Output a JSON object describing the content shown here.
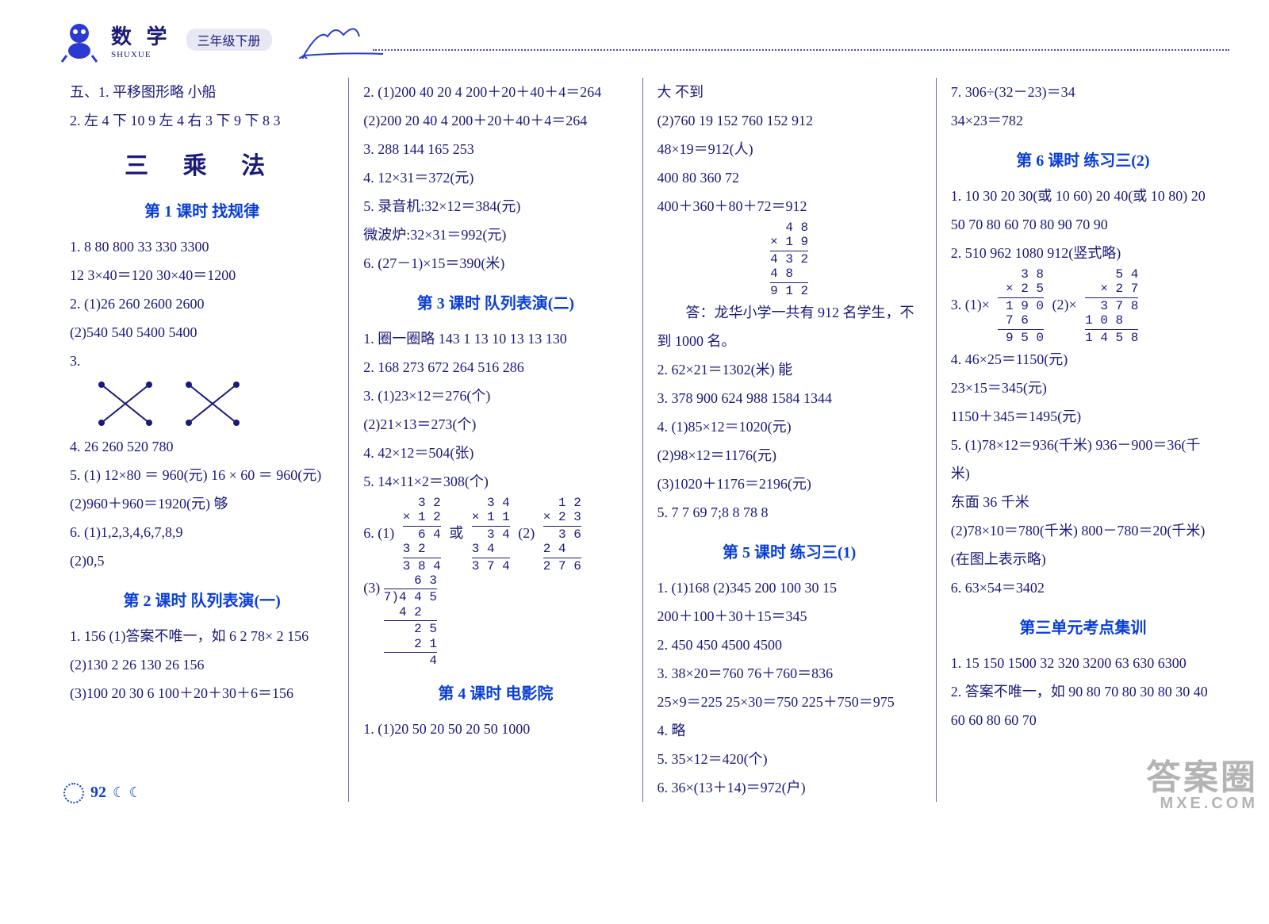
{
  "header": {
    "subject": "数 学",
    "pinyin": "SHUXUE",
    "grade": "三年级下册"
  },
  "unit_title": "三  乘    法",
  "lesson_titles": {
    "l1": "第 1 课时  找规律",
    "l2": "第 2 课时  队列表演(一)",
    "l3": "第 3 课时  队列表演(二)",
    "l4": "第 4 课时  电影院",
    "l5": "第 5 课时  练习三(1)",
    "l6": "第 6 课时  练习三(2)",
    "exam": "第三单元考点集训"
  },
  "col1": {
    "pre1": "五、1. 平移图形略  小船",
    "pre2": "2. 左 4 下 10 9 左 4 右 3 下 9 下 8 3",
    "l1_1": "1. 8  80  800  33  330  3300",
    "l1_1b": "12  3×40＝120  30×40＝1200",
    "l1_2": "2. (1)26  260  2600  2600",
    "l1_2b": "(2)540  540  5400  5400",
    "l1_3": "3.",
    "l1_4": "4. 26  260  520  780",
    "l1_5a": "5. (1) 12×80 ＝ 960(元)   16 × 60 ＝ 960(元)",
    "l1_5b": "(2)960＋960＝1920(元)  够",
    "l1_6a": "6. (1)1,2,3,4,6,7,8,9",
    "l1_6b": "(2)0,5",
    "l2_1a": "1. 156   (1)答案不唯一，如 6  2  78× 2  156",
    "l2_1b": "(2)130  2  26  130  26  156",
    "l2_1c": "(3)100  20  30  6  100＋20＋30＋6＝156"
  },
  "col2": {
    "l2_2a": "2. (1)200  40  20  4  200＋20＋40＋4＝264",
    "l2_2b": "(2)200  20  40  4  200＋20＋40＋4＝264",
    "l2_3": "3. 288  144  165  253",
    "l2_4": "4. 12×31＝372(元)",
    "l2_5a": "5. 录音机:32×12＝384(元)",
    "l2_5b": "微波炉:32×31＝992(元)",
    "l2_6": "6. (27－1)×15＝390(米)",
    "l3_1": "1. 圈一圈略  143  1  13  10  13  13  130",
    "l3_2": "2. 168  273  672  264  516  286",
    "l3_3a": "3. (1)23×12＝276(个)",
    "l3_3b": "(2)21×13＝273(个)",
    "l3_4": "4. 42×12＝504(张)",
    "l3_5": "5. 14×11×2＝308(个)",
    "l3_6": "6. (1)",
    "l3_6_or": "或",
    "l3_6_2": "(2)",
    "l3_6_3": "(3)",
    "l4_1": "1. (1)20  50  20  50  20  50  1000"
  },
  "col3": {
    "l4_pre": "大  不到",
    "l4_1b": "(2)760  19  152  760  152  912",
    "l4_1c": "48×19＝912(人)",
    "l4_1d": "400  80  360  72",
    "l4_1e": "400＋360＋80＋72＝912",
    "l4_ans": "答：龙华小学一共有 912 名学生，不到 1000 名。",
    "l4_2": "2. 62×21＝1302(米)  能",
    "l4_3": "3. 378  900  624  988  1584  1344",
    "l4_4a": "4. (1)85×12＝1020(元)",
    "l4_4b": "(2)98×12＝1176(元)",
    "l4_4c": "(3)1020＋1176＝2196(元)",
    "l4_5": "5. 7  7  69  7;8  8  78  8",
    "l5_1a": "1. (1)168  (2)345  200  100  30  15",
    "l5_1b": "200＋100＋30＋15＝345",
    "l5_2": "2. 450  450  4500  4500",
    "l5_3a": "3. 38×20＝760  76＋760＝836",
    "l5_3b": "25×9＝225   25×30＝750   225＋750＝975",
    "l5_4": "4. 略",
    "l5_5": "5. 35×12＝420(个)",
    "l5_6": "6. 36×(13＋14)＝972(户)"
  },
  "col4": {
    "l5_7a": "7. 306÷(32－23)＝34",
    "l5_7b": "34×23＝782",
    "l6_1": "1. 10  30  20  30(或 10  60)  20  40(或 10  80)  20  50  70  80  60  70  80  90  70  90",
    "l6_2": "2. 510  962  1080  912(竖式略)",
    "l6_3": "3. (1)×",
    "l6_3b": "(2)×",
    "l6_4a": "4. 46×25＝1150(元)",
    "l6_4b": "23×15＝345(元)",
    "l6_4c": "1150＋345＝1495(元)",
    "l6_5a": "5. (1)78×12＝936(千米)  936－900＝36(千米)",
    "l6_5b": "东面  36 千米",
    "l6_5c": "(2)78×10＝780(千米)  800－780＝20(千米)",
    "l6_5d": "(在图上表示略)",
    "l6_6": "6. 63×54＝3402",
    "ex_1": "1. 15  150  1500  32  320  3200  63  630  6300",
    "ex_2": "2. 答案不唯一，如 90  80  70  80  30  80  30  40  60  60  80  60  70"
  },
  "vmul": {
    "m48x19": {
      "rows": [
        "  4 8",
        "× 1 9",
        "4 3 2",
        "4 8  ",
        "9 1 2"
      ],
      "rules": [
        2,
        4
      ]
    },
    "m32x12": {
      "rows": [
        "  3 2",
        "× 1 2",
        "  6 4",
        "3 2  ",
        "3 8 4"
      ],
      "rules": [
        2,
        4
      ]
    },
    "m34x11": {
      "rows": [
        "  3 4",
        "× 1 1",
        "  3 4",
        "3 4  ",
        "3 7 4"
      ],
      "rules": [
        2,
        4
      ]
    },
    "m12x23": {
      "rows": [
        "  1 2",
        "× 2 3",
        "  3 6",
        "2 4  ",
        "2 7 6"
      ],
      "rules": [
        2,
        4
      ]
    },
    "m38x25": {
      "rows": [
        "   3 8",
        " × 2 5",
        " 1 9 0",
        " 7 6  ",
        " 9 5 0"
      ],
      "rules": [
        2,
        4
      ]
    },
    "m54x27": {
      "rows": [
        "    5 4",
        "  × 2 7",
        "  3 7 8",
        "1 0 8  ",
        "1 4 5 8"
      ],
      "rules": [
        2,
        4
      ]
    }
  },
  "vdiv": {
    "d445_7": {
      "quotient": "   6 3",
      "divisor": "7",
      "dividend": "4 4 5",
      "steps": [
        "4 2  ",
        "  2 5",
        "  2 1",
        "    4"
      ],
      "rules": [
        1,
        3
      ]
    }
  },
  "page_number": "92",
  "moons": "☾ ☾",
  "watermark": {
    "big": "答案圈",
    "small": "MXE.COM"
  },
  "colors": {
    "text": "#1a1a7a",
    "title": "#0a3fd6",
    "rule": "#6a6ac0"
  }
}
